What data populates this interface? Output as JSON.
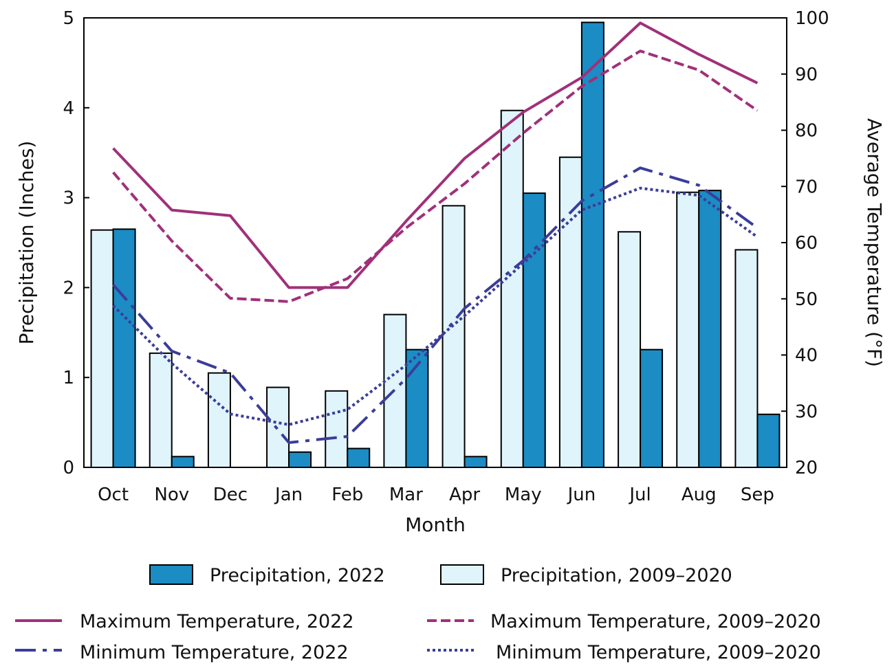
{
  "chart_data": {
    "type": "bar",
    "xlabel": "Month",
    "ylabel_left": "Precipitation (Inches)",
    "ylabel_right_prefix": "Average Temperature (",
    "ylabel_right_unit": "°F",
    "ylabel_right_suffix": ")",
    "ylim_left": [
      0,
      5
    ],
    "ylim_right": [
      20,
      100
    ],
    "left_ticks": [
      0,
      1,
      2,
      3,
      4,
      5
    ],
    "right_ticks": [
      20,
      30,
      40,
      50,
      60,
      70,
      80,
      90,
      100
    ],
    "categories": [
      "Oct",
      "Nov",
      "Dec",
      "Jan",
      "Feb",
      "Mar",
      "Apr",
      "May",
      "Jun",
      "Jul",
      "Aug",
      "Sep"
    ],
    "bar_series": [
      {
        "name": "Precipitation, 2009–2020",
        "key": "precip_normal",
        "color": "#e0f4fb",
        "values": [
          2.64,
          1.27,
          1.05,
          0.89,
          0.85,
          1.7,
          2.91,
          3.97,
          3.45,
          2.62,
          3.06,
          2.42
        ]
      },
      {
        "name": "Precipitation, 2022",
        "key": "precip_2022",
        "color": "#1b8cc4",
        "values": [
          2.65,
          0.12,
          0.0,
          0.17,
          0.21,
          1.31,
          0.12,
          3.05,
          4.95,
          1.31,
          3.08,
          0.59
        ]
      }
    ],
    "line_series": [
      {
        "name": "Maximum Temperature, 2022",
        "key": "tmax_2022",
        "color": "#a0307a",
        "dash": "solid",
        "values": [
          76.8,
          65.8,
          64.8,
          52.0,
          52.0,
          63.8,
          75.0,
          83.2,
          89.4,
          99.1,
          93.5,
          88.4
        ]
      },
      {
        "name": "Maximum Temperature, 2009–2020",
        "key": "tmax_normal",
        "color": "#a0307a",
        "dash": "dashed",
        "values": [
          72.5,
          60.3,
          50.1,
          49.5,
          53.6,
          62.6,
          70.5,
          79.5,
          87.8,
          94.1,
          90.7,
          83.5
        ]
      },
      {
        "name": "Minimum Temperature, 2022",
        "key": "tmin_2022",
        "color": "#3b3d9a",
        "dash": "dashdot",
        "values": [
          52.5,
          40.7,
          36.8,
          24.4,
          25.5,
          35.8,
          48.3,
          56.8,
          67.4,
          73.3,
          70.2,
          62.6
        ]
      },
      {
        "name": "Minimum Temperature, 2009–2020",
        "key": "tmin_normal",
        "color": "#3b3d9a",
        "dash": "dotted",
        "values": [
          48.8,
          38.5,
          29.5,
          27.6,
          30.3,
          38.2,
          47.0,
          56.3,
          65.8,
          69.7,
          68.4,
          61.0
        ]
      }
    ],
    "legend": {
      "bars": [
        "Precipitation, 2022",
        "Precipitation, 2009–2020"
      ],
      "lines": [
        "Maximum Temperature, 2022",
        "Maximum Temperature, 2009–2020",
        "Minimum Temperature, 2022",
        "Minimum Temperature, 2009–2020"
      ]
    }
  }
}
